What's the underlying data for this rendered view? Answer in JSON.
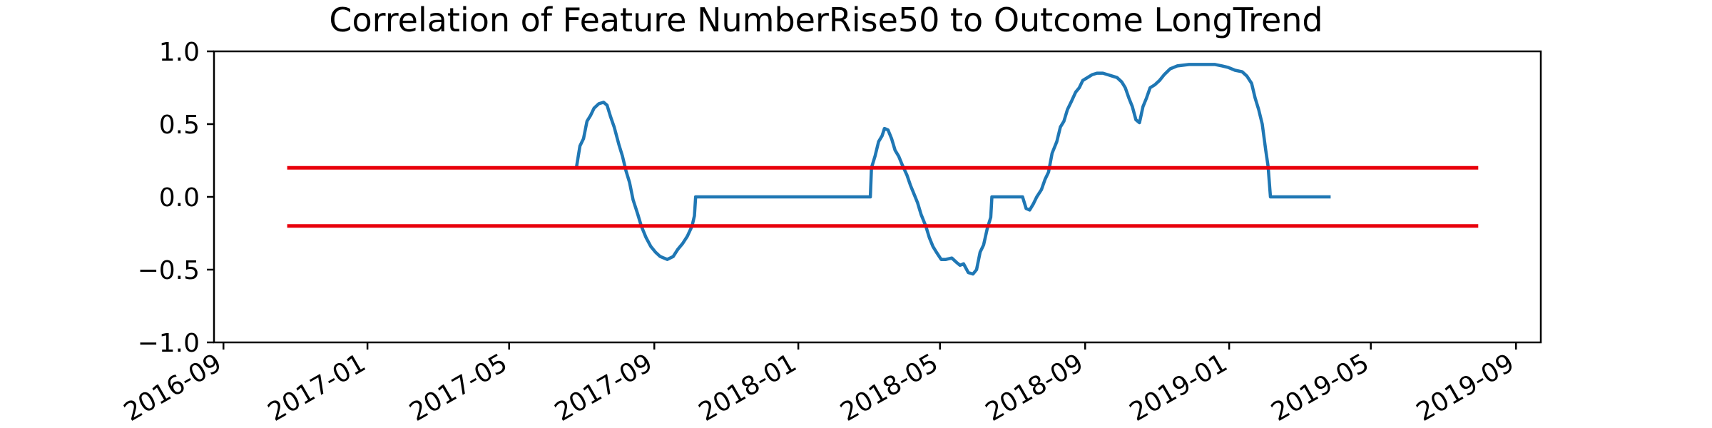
{
  "chart_data": {
    "type": "line",
    "title": "Correlation of Feature NumberRise50 to Outcome LongTrend",
    "xlabel": "",
    "ylabel": "",
    "x_axis_type": "date",
    "xlim": [
      "2016-08-24",
      "2019-09-22"
    ],
    "ylim": [
      -1.0,
      1.0
    ],
    "grid": false,
    "x_ticks": [
      "2016-09",
      "2017-01",
      "2017-05",
      "2017-09",
      "2018-01",
      "2018-05",
      "2018-09",
      "2019-01",
      "2019-05",
      "2019-09"
    ],
    "x_tick_dates": [
      "2016-09-01",
      "2017-01-01",
      "2017-05-01",
      "2017-09-01",
      "2018-01-01",
      "2018-05-01",
      "2018-09-01",
      "2019-01-01",
      "2019-05-01",
      "2019-09-01"
    ],
    "y_ticks": [
      "1.0",
      "0.5",
      "0.0",
      "−0.5",
      "−1.0"
    ],
    "y_tick_values": [
      1.0,
      0.5,
      0.0,
      -0.5,
      -1.0
    ],
    "series": [
      {
        "color": "#1f77b4",
        "points": [
          [
            "2017-06-27",
            0.2
          ],
          [
            "2017-06-30",
            0.35
          ],
          [
            "2017-07-03",
            0.4
          ],
          [
            "2017-07-06",
            0.52
          ],
          [
            "2017-07-09",
            0.56
          ],
          [
            "2017-07-12",
            0.61
          ],
          [
            "2017-07-16",
            0.64
          ],
          [
            "2017-07-20",
            0.65
          ],
          [
            "2017-07-23",
            0.63
          ],
          [
            "2017-07-26",
            0.55
          ],
          [
            "2017-07-29",
            0.48
          ],
          [
            "2017-08-02",
            0.36
          ],
          [
            "2017-08-05",
            0.28
          ],
          [
            "2017-08-08",
            0.18
          ],
          [
            "2017-08-11",
            0.1
          ],
          [
            "2017-08-14",
            -0.02
          ],
          [
            "2017-08-18",
            -0.12
          ],
          [
            "2017-08-21",
            -0.2
          ],
          [
            "2017-08-25",
            -0.28
          ],
          [
            "2017-08-29",
            -0.34
          ],
          [
            "2017-09-02",
            -0.38
          ],
          [
            "2017-09-06",
            -0.41
          ],
          [
            "2017-09-12",
            -0.43
          ],
          [
            "2017-09-17",
            -0.41
          ],
          [
            "2017-09-21",
            -0.36
          ],
          [
            "2017-09-25",
            -0.32
          ],
          [
            "2017-09-29",
            -0.27
          ],
          [
            "2017-10-03",
            -0.2
          ],
          [
            "2017-10-05",
            -0.13
          ],
          [
            "2017-10-06",
            0.0
          ],
          [
            "2018-03-03",
            0.0
          ],
          [
            "2018-03-04",
            0.2
          ],
          [
            "2018-03-07",
            0.28
          ],
          [
            "2018-03-10",
            0.38
          ],
          [
            "2018-03-13",
            0.42
          ],
          [
            "2018-03-15",
            0.47
          ],
          [
            "2018-03-18",
            0.46
          ],
          [
            "2018-03-21",
            0.4
          ],
          [
            "2018-03-24",
            0.32
          ],
          [
            "2018-03-27",
            0.28
          ],
          [
            "2018-03-30",
            0.22
          ],
          [
            "2018-04-03",
            0.15
          ],
          [
            "2018-04-06",
            0.08
          ],
          [
            "2018-04-09",
            0.02
          ],
          [
            "2018-04-12",
            -0.04
          ],
          [
            "2018-04-15",
            -0.12
          ],
          [
            "2018-04-19",
            -0.2
          ],
          [
            "2018-04-22",
            -0.28
          ],
          [
            "2018-04-25",
            -0.34
          ],
          [
            "2018-04-28",
            -0.38
          ],
          [
            "2018-05-02",
            -0.43
          ],
          [
            "2018-05-06",
            -0.43
          ],
          [
            "2018-05-11",
            -0.42
          ],
          [
            "2018-05-15",
            -0.45
          ],
          [
            "2018-05-18",
            -0.47
          ],
          [
            "2018-05-21",
            -0.46
          ],
          [
            "2018-05-25",
            -0.52
          ],
          [
            "2018-05-29",
            -0.53
          ],
          [
            "2018-06-01",
            -0.5
          ],
          [
            "2018-06-04",
            -0.38
          ],
          [
            "2018-06-07",
            -0.33
          ],
          [
            "2018-06-10",
            -0.22
          ],
          [
            "2018-06-13",
            -0.14
          ],
          [
            "2018-06-14",
            0.0
          ],
          [
            "2018-07-10",
            0.0
          ],
          [
            "2018-07-13",
            -0.08
          ],
          [
            "2018-07-16",
            -0.09
          ],
          [
            "2018-07-19",
            -0.05
          ],
          [
            "2018-07-22",
            0.0
          ],
          [
            "2018-07-26",
            0.05
          ],
          [
            "2018-07-29",
            0.12
          ],
          [
            "2018-08-01",
            0.17
          ],
          [
            "2018-08-04",
            0.3
          ],
          [
            "2018-08-08",
            0.38
          ],
          [
            "2018-08-11",
            0.48
          ],
          [
            "2018-08-14",
            0.52
          ],
          [
            "2018-08-17",
            0.6
          ],
          [
            "2018-08-20",
            0.65
          ],
          [
            "2018-08-24",
            0.72
          ],
          [
            "2018-08-27",
            0.75
          ],
          [
            "2018-08-30",
            0.8
          ],
          [
            "2018-09-03",
            0.82
          ],
          [
            "2018-09-07",
            0.84
          ],
          [
            "2018-09-11",
            0.85
          ],
          [
            "2018-09-16",
            0.85
          ],
          [
            "2018-09-20",
            0.84
          ],
          [
            "2018-09-24",
            0.83
          ],
          [
            "2018-09-28",
            0.82
          ],
          [
            "2018-10-02",
            0.79
          ],
          [
            "2018-10-05",
            0.75
          ],
          [
            "2018-10-08",
            0.68
          ],
          [
            "2018-10-11",
            0.62
          ],
          [
            "2018-10-14",
            0.53
          ],
          [
            "2018-10-17",
            0.51
          ],
          [
            "2018-10-20",
            0.62
          ],
          [
            "2018-10-23",
            0.68
          ],
          [
            "2018-10-26",
            0.75
          ],
          [
            "2018-10-30",
            0.77
          ],
          [
            "2018-11-03",
            0.8
          ],
          [
            "2018-11-07",
            0.84
          ],
          [
            "2018-11-12",
            0.88
          ],
          [
            "2018-11-18",
            0.9
          ],
          [
            "2018-11-28",
            0.91
          ],
          [
            "2018-12-10",
            0.91
          ],
          [
            "2018-12-20",
            0.91
          ],
          [
            "2018-12-26",
            0.9
          ],
          [
            "2018-12-31",
            0.89
          ],
          [
            "2019-01-06",
            0.87
          ],
          [
            "2019-01-12",
            0.86
          ],
          [
            "2019-01-16",
            0.83
          ],
          [
            "2019-01-20",
            0.78
          ],
          [
            "2019-01-23",
            0.68
          ],
          [
            "2019-01-26",
            0.6
          ],
          [
            "2019-01-29",
            0.5
          ],
          [
            "2019-02-01",
            0.32
          ],
          [
            "2019-02-03",
            0.21
          ],
          [
            "2019-02-05",
            0.0
          ],
          [
            "2019-03-28",
            0.0
          ]
        ]
      },
      {
        "color": "#e8000b",
        "points": [
          [
            "2016-10-25",
            0.2
          ],
          [
            "2019-07-31",
            0.2
          ]
        ]
      },
      {
        "color": "#e8000b",
        "points": [
          [
            "2016-10-25",
            -0.2
          ],
          [
            "2019-07-31",
            -0.2
          ]
        ]
      }
    ]
  }
}
